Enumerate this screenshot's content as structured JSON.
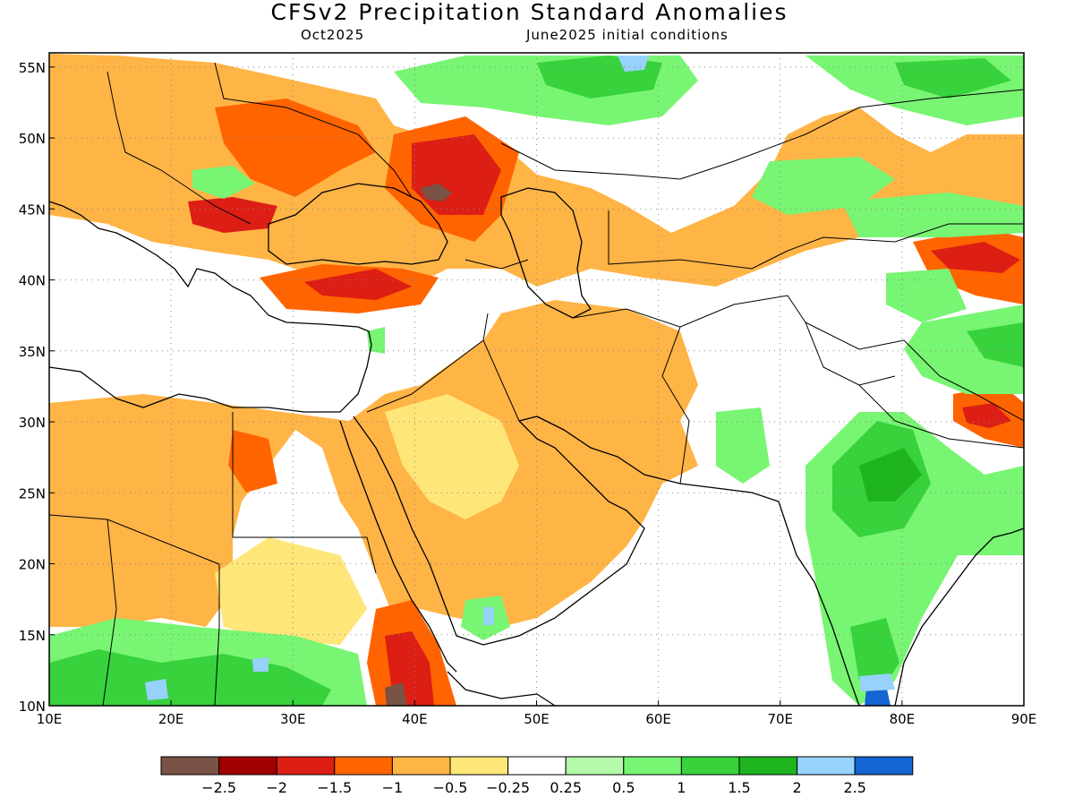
{
  "title": "CFSv2 Precipitation Standard Anomalies",
  "subtitle_left": "Oct2025",
  "subtitle_right": "June2025 initial conditions",
  "map": {
    "lon_range": [
      10,
      90
    ],
    "lat_range": [
      10,
      56
    ],
    "lon_ticks": [
      {
        "value": 10,
        "label": "10E"
      },
      {
        "value": 20,
        "label": "20E"
      },
      {
        "value": 30,
        "label": "30E"
      },
      {
        "value": 40,
        "label": "40E"
      },
      {
        "value": 50,
        "label": "50E"
      },
      {
        "value": 60,
        "label": "60E"
      },
      {
        "value": 70,
        "label": "70E"
      },
      {
        "value": 80,
        "label": "80E"
      },
      {
        "value": 90,
        "label": "90E"
      }
    ],
    "lat_ticks": [
      {
        "value": 10,
        "label": "10N"
      },
      {
        "value": 15,
        "label": "15N"
      },
      {
        "value": 20,
        "label": "20N"
      },
      {
        "value": 25,
        "label": "25N"
      },
      {
        "value": 30,
        "label": "30N"
      },
      {
        "value": 35,
        "label": "35N"
      },
      {
        "value": 40,
        "label": "40N"
      },
      {
        "value": 45,
        "label": "45N"
      },
      {
        "value": 50,
        "label": "50N"
      },
      {
        "value": 55,
        "label": "55N"
      }
    ],
    "gridlines": "dotted"
  },
  "colorbar": {
    "colors": [
      "#7a5246",
      "#a00000",
      "#dc1e14",
      "#ff6400",
      "#ffb446",
      "#ffe678",
      "#ffffff",
      "#b4faaa",
      "#78f573",
      "#37d23c",
      "#1eb41e",
      "#96d2fa",
      "#1464d2"
    ],
    "labels": [
      "−2.5",
      "−2",
      "−1.5",
      "−1",
      "−0.5",
      "−0.25",
      "0.25",
      "0.5",
      "1",
      "1.5",
      "2",
      "2.5"
    ]
  }
}
